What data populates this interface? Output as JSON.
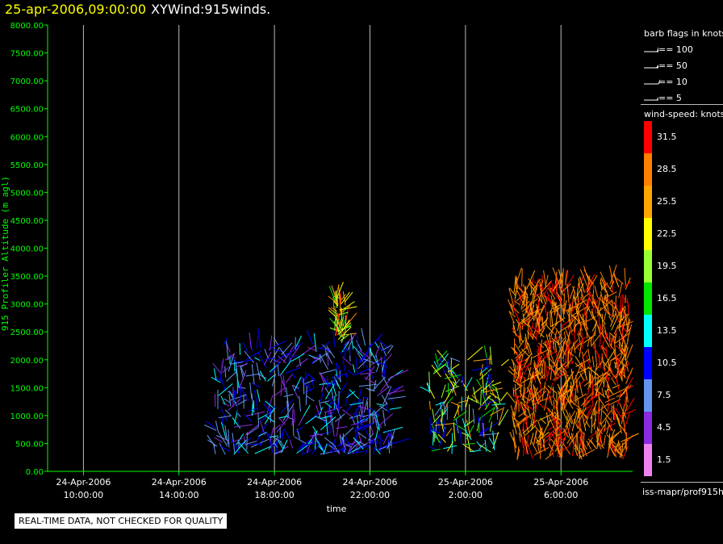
{
  "header": {
    "date_label": "25-apr-2006,09:00:00",
    "plot_name": "XYWind:915winds."
  },
  "chart_data": {
    "type": "scatter",
    "title": "25-apr-2006,09:00:00  XYWind:915winds.",
    "xlabel": "time",
    "ylabel": "915 Profiler Altitude (m agl)",
    "ylim": [
      0,
      8000
    ],
    "yticks": [
      "0.00",
      "500.00",
      "1000.00",
      "1500.00",
      "2000.00",
      "2500.00",
      "3000.00",
      "3500.00",
      "4000.00",
      "4500.00",
      "5000.00",
      "5500.00",
      "6000.00",
      "6500.00",
      "7000.00",
      "7500.00",
      "8000.00"
    ],
    "x_range_hours": [
      "24-Apr-2006 8:30",
      "25-Apr-2006 9:00"
    ],
    "xticks": [
      {
        "date": "24-Apr-2006",
        "time": "10:00:00"
      },
      {
        "date": "24-Apr-2006",
        "time": "14:00:00"
      },
      {
        "date": "24-Apr-2006",
        "time": "18:00:00"
      },
      {
        "date": "24-Apr-2006",
        "time": "22:00:00"
      },
      {
        "date": "25-Apr-2006",
        "time": "2:00:00"
      },
      {
        "date": "25-Apr-2006",
        "time": "6:00:00"
      }
    ],
    "grid": "vertical lines at x ticks",
    "wind_clusters": [
      {
        "time_start": "24-Apr-2006 15:30",
        "time_end": "24-Apr-2006 23:00",
        "alt_range": [
          300,
          2300
        ],
        "typical_speed_knots": [
          4.5,
          13.5
        ]
      },
      {
        "time_start": "24-Apr-2006 20:30",
        "time_end": "24-Apr-2006 21:00",
        "alt_range": [
          2300,
          3100
        ],
        "typical_speed_knots": [
          16.5,
          31.5
        ]
      },
      {
        "time_start": "25-Apr-2006 0:30",
        "time_end": "25-Apr-2006 3:30",
        "alt_range": [
          300,
          2000
        ],
        "typical_speed_knots": [
          7.5,
          25.5
        ]
      },
      {
        "time_start": "25-Apr-2006 4:00",
        "time_end": "25-Apr-2006 8:50",
        "alt_range": [
          200,
          3400
        ],
        "typical_speed_knots": [
          25.5,
          31.5
        ]
      }
    ]
  },
  "legend": {
    "barb_title": "barb flags in knots",
    "barb_flags": [
      "== 100",
      "== 50",
      "== 10",
      "== 5"
    ],
    "speed_title": "wind-speed: knots",
    "speed_bins": [
      {
        "label": "31.5",
        "color": "#ff0000"
      },
      {
        "label": "28.5",
        "color": "#ff7f00"
      },
      {
        "label": "25.5",
        "color": "#ffa500"
      },
      {
        "label": "22.5",
        "color": "#ffff00"
      },
      {
        "label": "19.5",
        "color": "#9aff32"
      },
      {
        "label": "16.5",
        "color": "#00e600"
      },
      {
        "label": "13.5",
        "color": "#00ffff"
      },
      {
        "label": "10.5",
        "color": "#0000ff"
      },
      {
        "label": "7.5",
        "color": "#6495ed"
      },
      {
        "label": "4.5",
        "color": "#8a2be2"
      },
      {
        "label": "1.5",
        "color": "#ee82ee"
      }
    ],
    "source": "iss-mapr/prof915h"
  },
  "notice": "REAL-TIME DATA, NOT CHECKED FOR QUALITY",
  "colors": {
    "axis": "#00ff00",
    "grid": "#ffffff",
    "title": "#ffff00",
    "background": "#000000"
  }
}
